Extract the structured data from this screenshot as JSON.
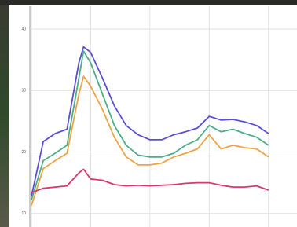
{
  "chart_data": {
    "type": "line",
    "x": [
      0,
      2,
      4,
      6,
      8,
      8.8,
      10,
      12,
      14,
      16,
      18,
      20,
      22,
      24,
      26,
      28,
      30,
      32,
      34,
      36,
      38,
      40
    ],
    "series": [
      {
        "color": "#5a4fd6",
        "values": [
          12.8,
          21.7,
          23.0,
          23.7,
          34.5,
          37.1,
          36.2,
          32.0,
          27.5,
          24.3,
          22.8,
          22.0,
          22.0,
          22.8,
          23.3,
          23.9,
          25.8,
          25.2,
          25.3,
          24.9,
          24.3,
          23.0
        ]
      },
      {
        "color": "#4fae86",
        "values": [
          12.2,
          18.6,
          19.8,
          21.1,
          32.0,
          36.4,
          34.5,
          29.4,
          24.3,
          21.1,
          19.5,
          19.2,
          19.2,
          19.8,
          21.1,
          22.0,
          24.3,
          23.3,
          23.7,
          23.0,
          22.4,
          21.1
        ]
      },
      {
        "color": "#eea445",
        "values": [
          11.3,
          17.3,
          18.6,
          19.8,
          29.4,
          32.3,
          30.7,
          26.9,
          22.4,
          19.2,
          17.9,
          17.9,
          18.2,
          19.2,
          19.8,
          20.5,
          22.8,
          20.5,
          21.1,
          20.7,
          20.5,
          19.2
        ]
      },
      {
        "color": "#d8386a",
        "values": [
          13.4,
          14.1,
          14.3,
          14.5,
          16.6,
          17.2,
          15.6,
          15.4,
          14.7,
          14.5,
          14.6,
          14.5,
          14.6,
          14.7,
          14.9,
          15.0,
          15.0,
          14.6,
          14.3,
          14.3,
          14.5,
          13.8
        ]
      }
    ],
    "xlim": [
      0,
      44.8
    ],
    "xticks": [
      0,
      10,
      20,
      30,
      40
    ],
    "ylim": [
      7.8,
      43.7
    ],
    "yticks": [
      10,
      20,
      30,
      40
    ],
    "grid": true
  }
}
